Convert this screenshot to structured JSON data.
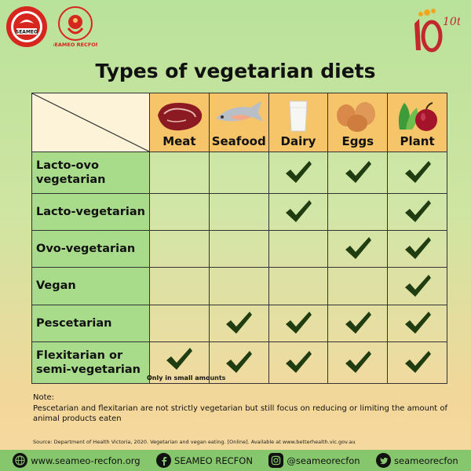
{
  "header": {
    "seameo_logo_text": "SEAMEO",
    "recfon_logo_text": "SEAMEO RECFON",
    "anniversary_text": "10th"
  },
  "title": "Types of vegetarian diets",
  "columns": [
    {
      "label": "Meat",
      "icon": "meat-icon"
    },
    {
      "label": "Seafood",
      "icon": "fish-icon"
    },
    {
      "label": "Dairy",
      "icon": "milk-icon"
    },
    {
      "label": "Eggs",
      "icon": "eggs-icon"
    },
    {
      "label": "Plant",
      "icon": "vegetables-icon"
    }
  ],
  "rows": [
    {
      "label": "Lacto-ovo vegetarian",
      "checks": [
        false,
        false,
        true,
        true,
        true
      ]
    },
    {
      "label": "Lacto-vegetarian",
      "checks": [
        false,
        false,
        true,
        false,
        true
      ]
    },
    {
      "label": "Ovo-vegetarian",
      "checks": [
        false,
        false,
        false,
        true,
        true
      ]
    },
    {
      "label": "Vegan",
      "checks": [
        false,
        false,
        false,
        false,
        true
      ]
    },
    {
      "label": "Pescetarian",
      "checks": [
        false,
        true,
        true,
        true,
        true
      ]
    },
    {
      "label": "Flexitarian or semi-vegetarian",
      "checks": [
        true,
        true,
        true,
        true,
        true
      ],
      "meat_note": "Only in small amounts"
    }
  ],
  "note": {
    "heading": "Note:",
    "text": "Pescetarian and flexitarian are not strictly vegetarian but still focus on reducing or limiting the amount of animal products eaten"
  },
  "source": "Source: Department of Health Victoria, 2020. Vegetarian and vegan eating. [Online]. Available at www.betterhealth.vic.gov.au",
  "footer": {
    "website": "www.seameo-recfon.org",
    "facebook": "SEAMEO RECFON",
    "instagram": "@seameorecfon",
    "twitter": "seameorecfon"
  },
  "colors": {
    "header_cell": "#f6c56a",
    "row_header": "#a8dc8a",
    "check": "#1f3d10",
    "footer": "#86c66c"
  }
}
